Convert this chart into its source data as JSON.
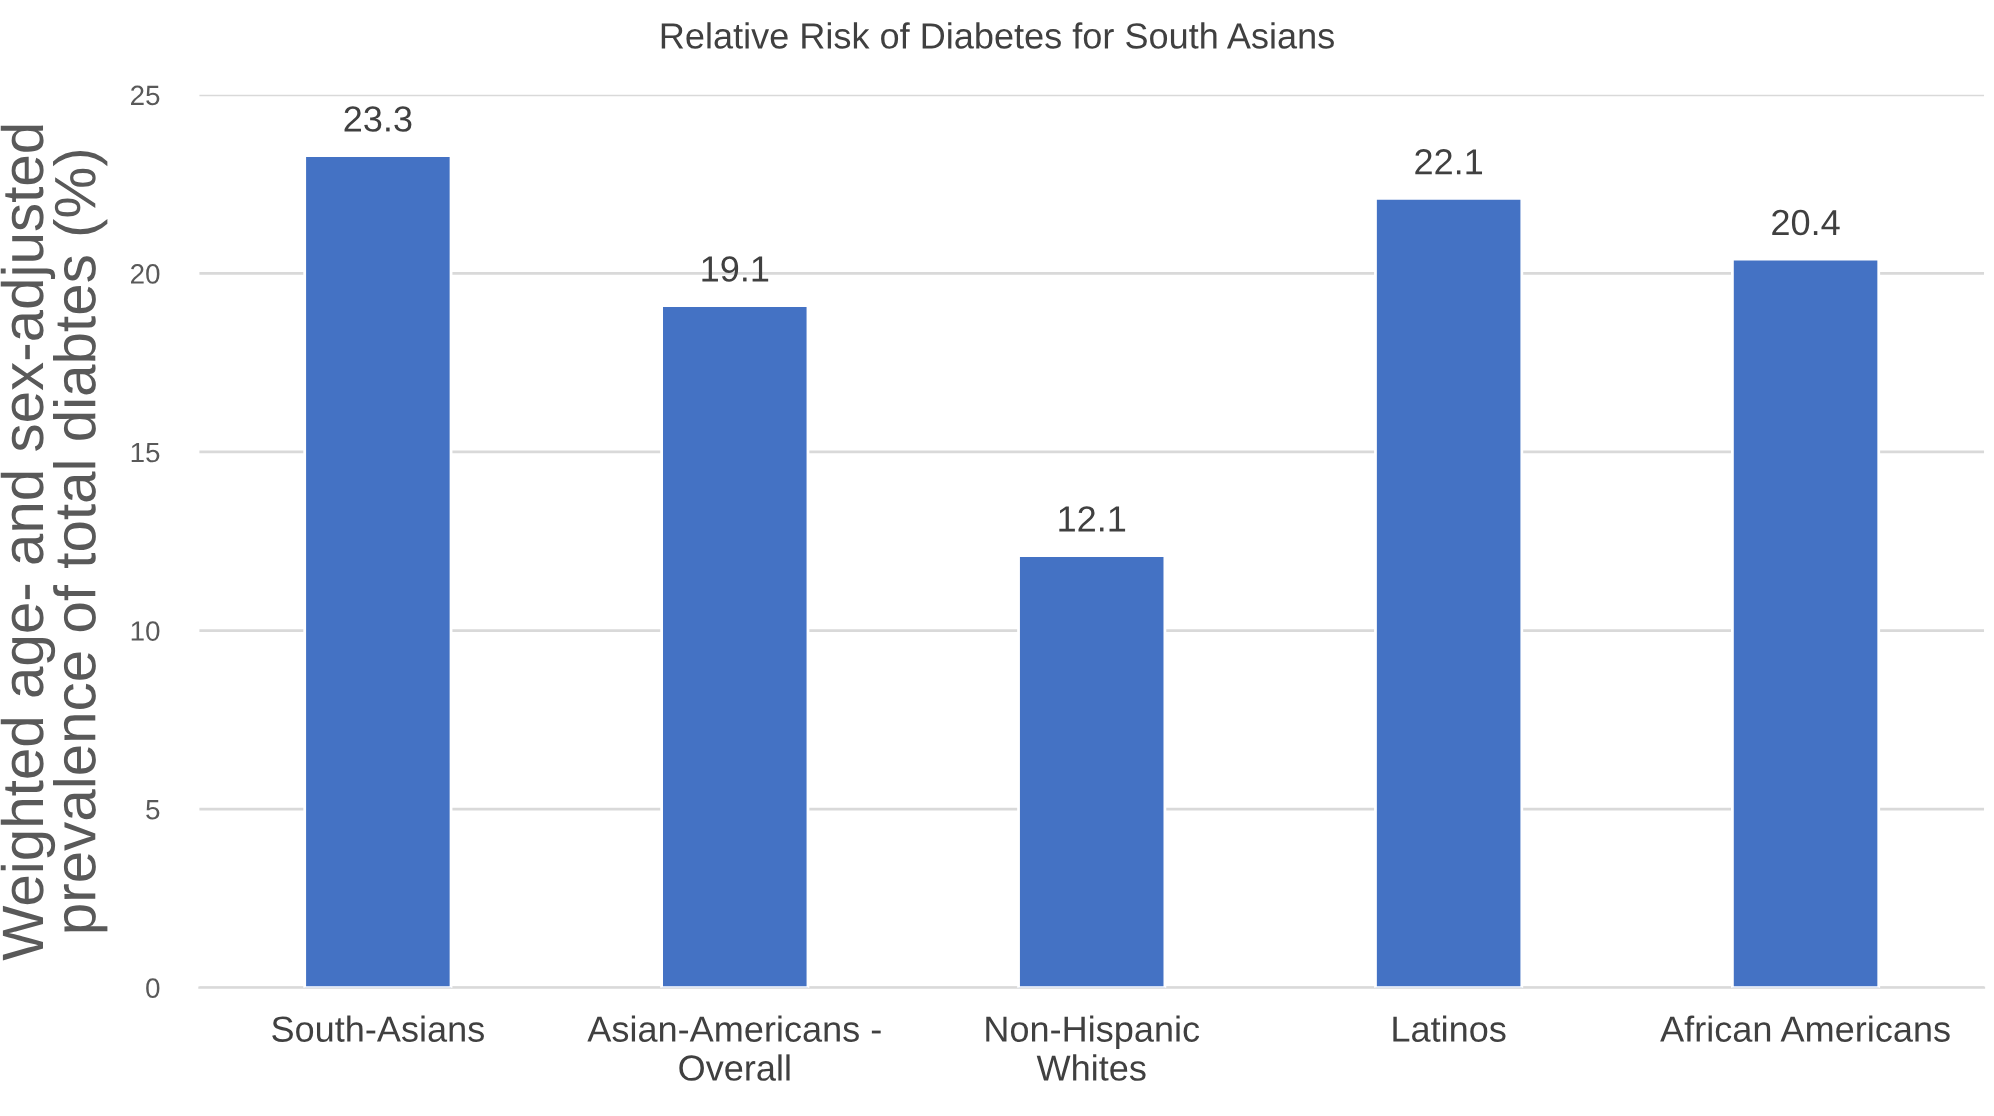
{
  "chart_data": {
    "type": "bar",
    "title": "Relative Risk of Diabetes for South Asians",
    "ylabel": "Weighted age- and sex-adjusted\nprevalence of total diabtes (%)",
    "categories": [
      "South-Asians",
      "Asian-Americans -\nOverall",
      "Non-Hispanic\nWhites",
      "Latinos",
      "African Americans"
    ],
    "values": [
      23.3,
      19.1,
      12.1,
      22.1,
      20.4
    ],
    "color": "#4472c4",
    "ylim": [
      0,
      25
    ],
    "yticks": [
      0,
      5,
      10,
      15,
      20,
      25
    ],
    "grid": "y",
    "data_labels": true
  }
}
